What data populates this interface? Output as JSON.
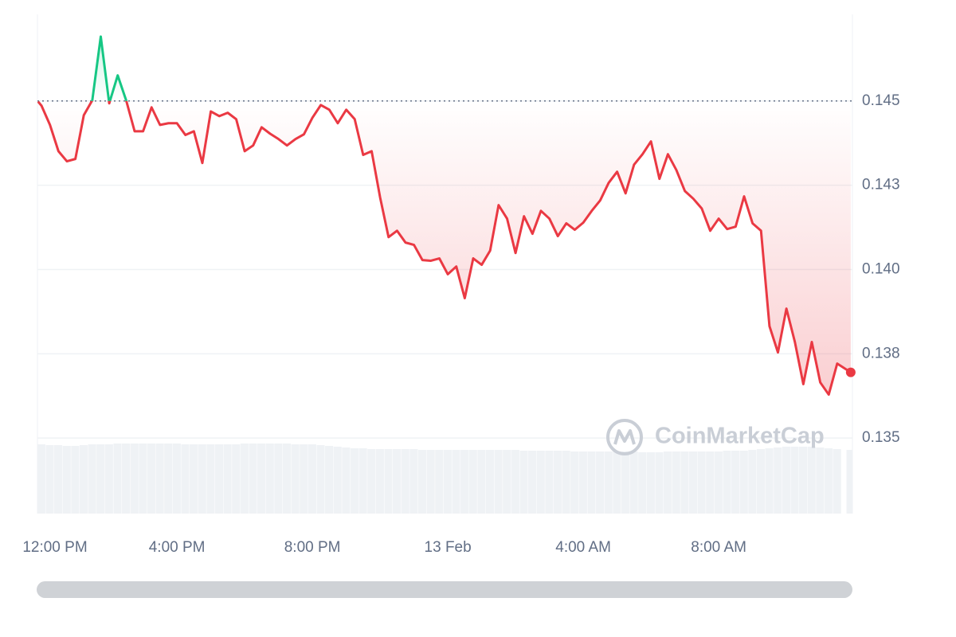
{
  "chart_data": {
    "type": "line",
    "watermark": "CoinMarketCap",
    "x": [
      -0.1,
      0,
      0.25,
      0.5,
      0.75,
      1,
      1.25,
      1.5,
      1.75,
      2,
      2.25,
      2.5,
      2.75,
      3,
      3.25,
      3.5,
      3.75,
      4,
      4.25,
      4.5,
      4.75,
      5,
      5.25,
      5.5,
      5.75,
      6,
      6.25,
      6.5,
      6.75,
      7,
      7.25,
      7.5,
      7.75,
      8,
      8.25,
      8.5,
      8.75,
      9,
      9.25,
      9.5,
      9.75,
      10,
      10.25,
      10.5,
      10.75,
      11,
      11.25,
      11.5,
      11.75,
      12,
      12.25,
      12.5,
      12.75,
      13,
      13.25,
      13.5,
      13.75,
      14,
      14.25,
      14.5,
      14.75,
      15,
      15.25,
      15.5,
      15.75,
      16,
      16.25,
      16.5,
      16.75,
      17,
      17.25,
      17.5,
      17.75,
      18,
      18.25,
      18.5,
      18.75,
      19,
      19.25,
      19.5,
      19.75,
      20,
      20.25,
      20.5,
      20.75,
      21,
      21.25,
      21.5,
      21.75,
      22,
      22.25,
      22.5,
      22.75,
      23,
      23.25,
      23.5,
      23.9
    ],
    "values": [
      0.14498,
      0.14486,
      0.14429,
      0.14351,
      0.14321,
      0.14328,
      0.14458,
      0.14502,
      0.14691,
      0.14493,
      0.14576,
      0.14502,
      0.1441,
      0.1441,
      0.14481,
      0.14429,
      0.14434,
      0.14434,
      0.14399,
      0.1441,
      0.14316,
      0.14469,
      0.14455,
      0.14465,
      0.14446,
      0.14351,
      0.14368,
      0.14422,
      0.14403,
      0.14387,
      0.14368,
      0.14387,
      0.14401,
      0.1445,
      0.14488,
      0.14474,
      0.14434,
      0.14474,
      0.14446,
      0.1434,
      0.14351,
      0.14214,
      0.14096,
      0.14115,
      0.1408,
      0.14073,
      0.14028,
      0.14026,
      0.14033,
      0.13986,
      0.14009,
      0.13915,
      0.14033,
      0.14014,
      0.14056,
      0.14191,
      0.14151,
      0.14049,
      0.14158,
      0.14106,
      0.14174,
      0.14151,
      0.14099,
      0.14137,
      0.14118,
      0.14139,
      0.14174,
      0.14205,
      0.14257,
      0.1429,
      0.14226,
      0.14311,
      0.14342,
      0.1438,
      0.14269,
      0.14342,
      0.14295,
      0.14233,
      0.1421,
      0.14181,
      0.14115,
      0.14151,
      0.1412,
      0.14127,
      0.14217,
      0.14137,
      0.14115,
      0.13832,
      0.13754,
      0.13884,
      0.13785,
      0.1366,
      0.13785,
      0.13665,
      0.13629,
      0.13721,
      0.13695
    ],
    "volume": [
      87,
      87,
      86,
      86,
      85,
      85,
      86,
      87,
      87,
      87,
      88,
      88,
      88,
      88,
      88,
      88,
      88,
      88,
      87,
      87,
      87,
      87,
      87,
      87,
      87,
      88,
      88,
      88,
      88,
      88,
      88,
      87,
      87,
      87,
      86,
      85,
      84,
      83,
      82,
      82,
      81,
      81,
      81,
      81,
      81,
      81,
      80,
      80,
      80,
      80,
      80,
      80,
      80,
      80,
      80,
      80,
      80,
      80,
      79,
      79,
      79,
      79,
      79,
      79,
      78,
      78,
      78,
      78,
      78,
      78,
      78,
      78,
      77,
      77,
      77,
      78,
      78,
      78,
      78,
      78,
      78,
      78,
      79,
      79,
      79,
      80,
      81,
      82,
      83,
      84,
      84,
      84,
      84,
      83,
      82,
      81,
      80
    ],
    "vlim": [
      0,
      100
    ],
    "baseline": 0.145,
    "up_color": "#16c784",
    "down_color": "#ea3943",
    "volume_color": "#eff2f5",
    "xlim": [
      -0.12,
      23.95
    ],
    "xticks": [
      {
        "value": 0,
        "label": "12:00 PM"
      },
      {
        "value": 4,
        "label": "4:00 PM"
      },
      {
        "value": 8,
        "label": "8:00 PM"
      },
      {
        "value": 12,
        "label": "13 Feb"
      },
      {
        "value": 16,
        "label": "4:00 AM"
      },
      {
        "value": 20,
        "label": "8:00 AM"
      }
    ],
    "ylim": [
      0.13276,
      0.14757
    ],
    "yticks": [
      0.135,
      {
        "value": 0.1375,
        "label": "0.138"
      },
      {
        "value": 0.14,
        "label": "0.140"
      },
      {
        "value": 0.1425,
        "label": "0.143"
      },
      0.145
    ],
    "grid": true
  }
}
